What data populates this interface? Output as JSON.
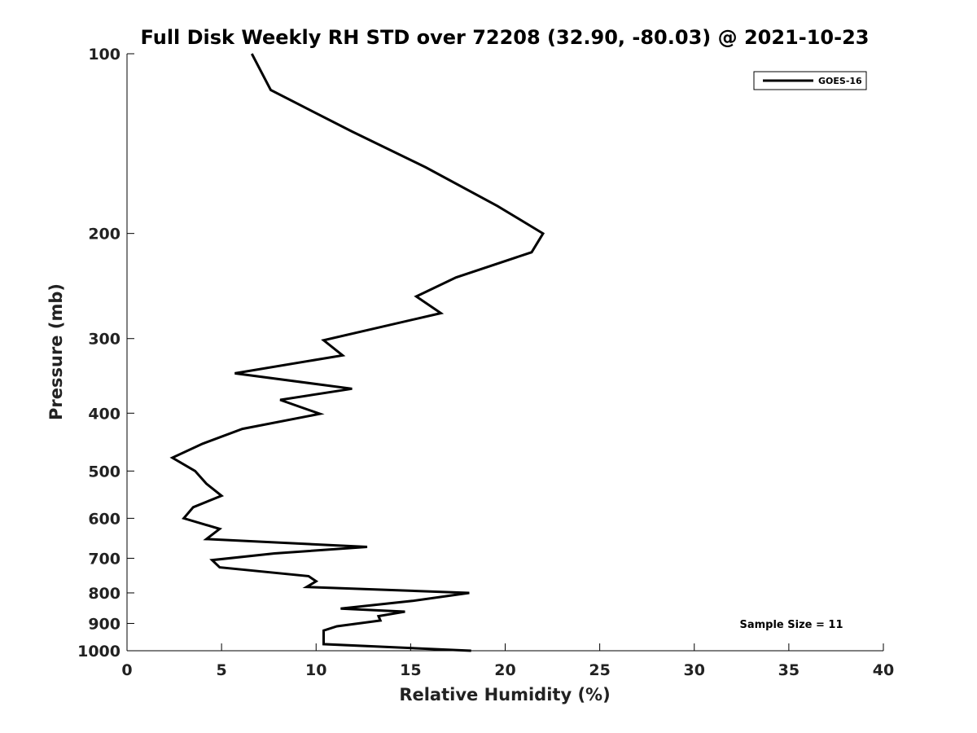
{
  "chart_data": {
    "type": "line",
    "title": "Full Disk Weekly RH STD over 72208 (32.90, -80.03) @ 2021-10-23",
    "xlabel": "Relative Humidity (%)",
    "ylabel": "Pressure (mb)",
    "xlim": [
      0,
      40
    ],
    "ylim": [
      1000,
      100
    ],
    "y_scale": "log",
    "x_ticks": [
      0,
      5,
      10,
      15,
      20,
      25,
      30,
      35,
      40
    ],
    "y_ticks": [
      100,
      200,
      300,
      400,
      500,
      600,
      700,
      800,
      900,
      1000
    ],
    "grid": false,
    "legend": {
      "position": "top-right",
      "entries": [
        "GOES-16"
      ]
    },
    "annotation": "Sample Size = 11",
    "series": [
      {
        "name": "GOES-16",
        "color": "#000000",
        "points": [
          [
            6.6,
            100
          ],
          [
            7.6,
            115
          ],
          [
            11.9,
            135
          ],
          [
            15.8,
            155
          ],
          [
            19.6,
            180
          ],
          [
            22.0,
            200
          ],
          [
            21.4,
            215
          ],
          [
            17.4,
            237
          ],
          [
            15.3,
            255
          ],
          [
            16.6,
            272
          ],
          [
            10.4,
            302
          ],
          [
            11.4,
            320
          ],
          [
            5.7,
            343
          ],
          [
            11.9,
            364
          ],
          [
            8.1,
            380
          ],
          [
            10.2,
            401
          ],
          [
            6.1,
            425
          ],
          [
            4.0,
            450
          ],
          [
            2.4,
            475
          ],
          [
            3.6,
            500
          ],
          [
            4.2,
            525
          ],
          [
            5.0,
            550
          ],
          [
            3.5,
            575
          ],
          [
            3.0,
            600
          ],
          [
            4.9,
            625
          ],
          [
            4.2,
            650
          ],
          [
            12.7,
            670
          ],
          [
            7.8,
            687
          ],
          [
            4.5,
            705
          ],
          [
            4.9,
            725
          ],
          [
            9.6,
            750
          ],
          [
            10.0,
            765
          ],
          [
            9.5,
            782
          ],
          [
            18.1,
            800
          ],
          [
            15.1,
            825
          ],
          [
            11.3,
            850
          ],
          [
            14.7,
            860
          ],
          [
            13.3,
            875
          ],
          [
            13.4,
            890
          ],
          [
            11.1,
            910
          ],
          [
            10.4,
            925
          ],
          [
            10.4,
            975
          ],
          [
            18.2,
            1000
          ]
        ]
      }
    ]
  }
}
